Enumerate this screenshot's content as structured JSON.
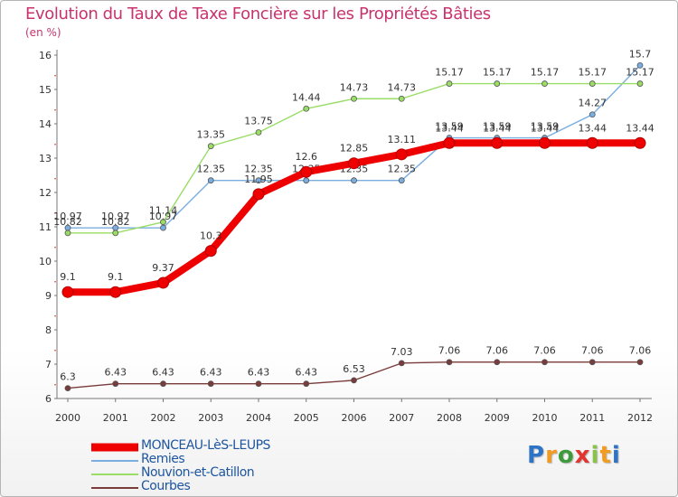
{
  "header": {
    "title": "Evolution du Taux de Taxe Foncière sur les Propriétés Bâties",
    "subtitle": "(en %)"
  },
  "logo": {
    "letters": [
      "P",
      "r",
      "o",
      "x",
      "i",
      "t",
      "i"
    ],
    "colors": [
      "#2e74c6",
      "#f29b21",
      "#3d9b3b",
      "#e3342f",
      "#8bc34a",
      "#f29b21",
      "#2e74c6"
    ]
  },
  "chart_data": {
    "type": "line",
    "title": "Evolution du Taux de Taxe Foncière sur les Propriétés Bâties",
    "ylabel": "(en %)",
    "xlabel": "",
    "ylim": [
      6,
      16
    ],
    "yticks": [
      "6",
      "7",
      "8",
      "9",
      "10",
      "11",
      "12",
      "13",
      "14",
      "15",
      "16"
    ],
    "x": [
      "2000",
      "2001",
      "2002",
      "2003",
      "2004",
      "2005",
      "2006",
      "2007",
      "2008",
      "2009",
      "2010",
      "2011",
      "2012"
    ],
    "grid": false,
    "legend": "bottom-left",
    "series": [
      {
        "name": "Remies",
        "color": "#7aaee0",
        "values": [
          10.97,
          10.97,
          10.97,
          12.35,
          12.35,
          12.35,
          12.35,
          12.35,
          13.59,
          13.59,
          13.59,
          14.27,
          15.7
        ],
        "labels": [
          "10.97",
          "10.97",
          "10.97",
          "12.35",
          "12.35",
          "12.35",
          "12.35",
          "12.35",
          "13.59",
          "13.59",
          "13.59",
          "14.27",
          "15.7"
        ]
      },
      {
        "name": "Nouvion-et-Catillon",
        "color": "#99dd66",
        "values": [
          10.82,
          10.82,
          11.14,
          13.35,
          13.75,
          14.44,
          14.73,
          14.73,
          15.17,
          15.17,
          15.17,
          15.17,
          15.17
        ],
        "labels": [
          "10.82",
          "10.82",
          "11.14",
          "13.35",
          "13.75",
          "14.44",
          "14.73",
          "14.73",
          "15.17",
          "15.17",
          "15.17",
          "15.17",
          "15.17"
        ]
      },
      {
        "name": "Courbes",
        "color": "#7a3b3b",
        "values": [
          6.3,
          6.43,
          6.43,
          6.43,
          6.43,
          6.43,
          6.53,
          7.03,
          7.06,
          7.06,
          7.06,
          7.06,
          7.06
        ],
        "labels": [
          "6.3",
          "6.43",
          "6.43",
          "6.43",
          "6.43",
          "6.43",
          "6.53",
          "7.03",
          "7.06",
          "7.06",
          "7.06",
          "7.06",
          "7.06"
        ]
      },
      {
        "name": "MONCEAU-LèS-LEUPS",
        "color": "#ee0000",
        "values": [
          9.1,
          9.1,
          9.37,
          10.3,
          11.95,
          12.6,
          12.85,
          13.11,
          13.44,
          13.44,
          13.44,
          13.44,
          13.44
        ],
        "labels": [
          "9.1",
          "9.1",
          "9.37",
          "10.3",
          "11.95",
          "12.6",
          "12.85",
          "13.11",
          "13.44",
          "13.44",
          "13.44",
          "13.44",
          "13.44"
        ]
      }
    ],
    "legend_order": [
      "MONCEAU-LèS-LEUPS",
      "Remies",
      "Nouvion-et-Catillon",
      "Courbes"
    ]
  }
}
